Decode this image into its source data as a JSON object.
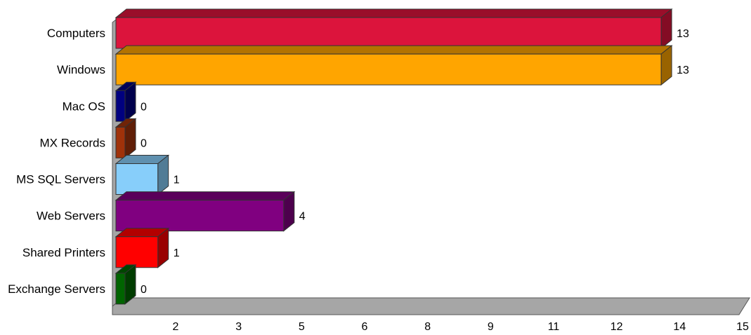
{
  "chart_data": {
    "type": "bar",
    "orientation": "horizontal",
    "style": "3d",
    "categories": [
      "Computers",
      "Windows",
      "Mac OS",
      "MX Records",
      "MS SQL Servers",
      "Web Servers",
      "Shared Printers",
      "Exchange Servers"
    ],
    "values": [
      13,
      13,
      0,
      0,
      1,
      4,
      1,
      0
    ],
    "colors": [
      "#DC143C",
      "#FFA500",
      "#000080",
      "#A0320A",
      "#87CEFA",
      "#800080",
      "#FF0000",
      "#006400"
    ],
    "x_tick_labels": [
      "2",
      "3",
      "5",
      "6",
      "8",
      "9",
      "11",
      "12",
      "14",
      "15"
    ],
    "xlim": [
      0,
      15
    ],
    "title": "",
    "xlabel": "",
    "ylabel": "",
    "grid": false,
    "legend": "none"
  }
}
